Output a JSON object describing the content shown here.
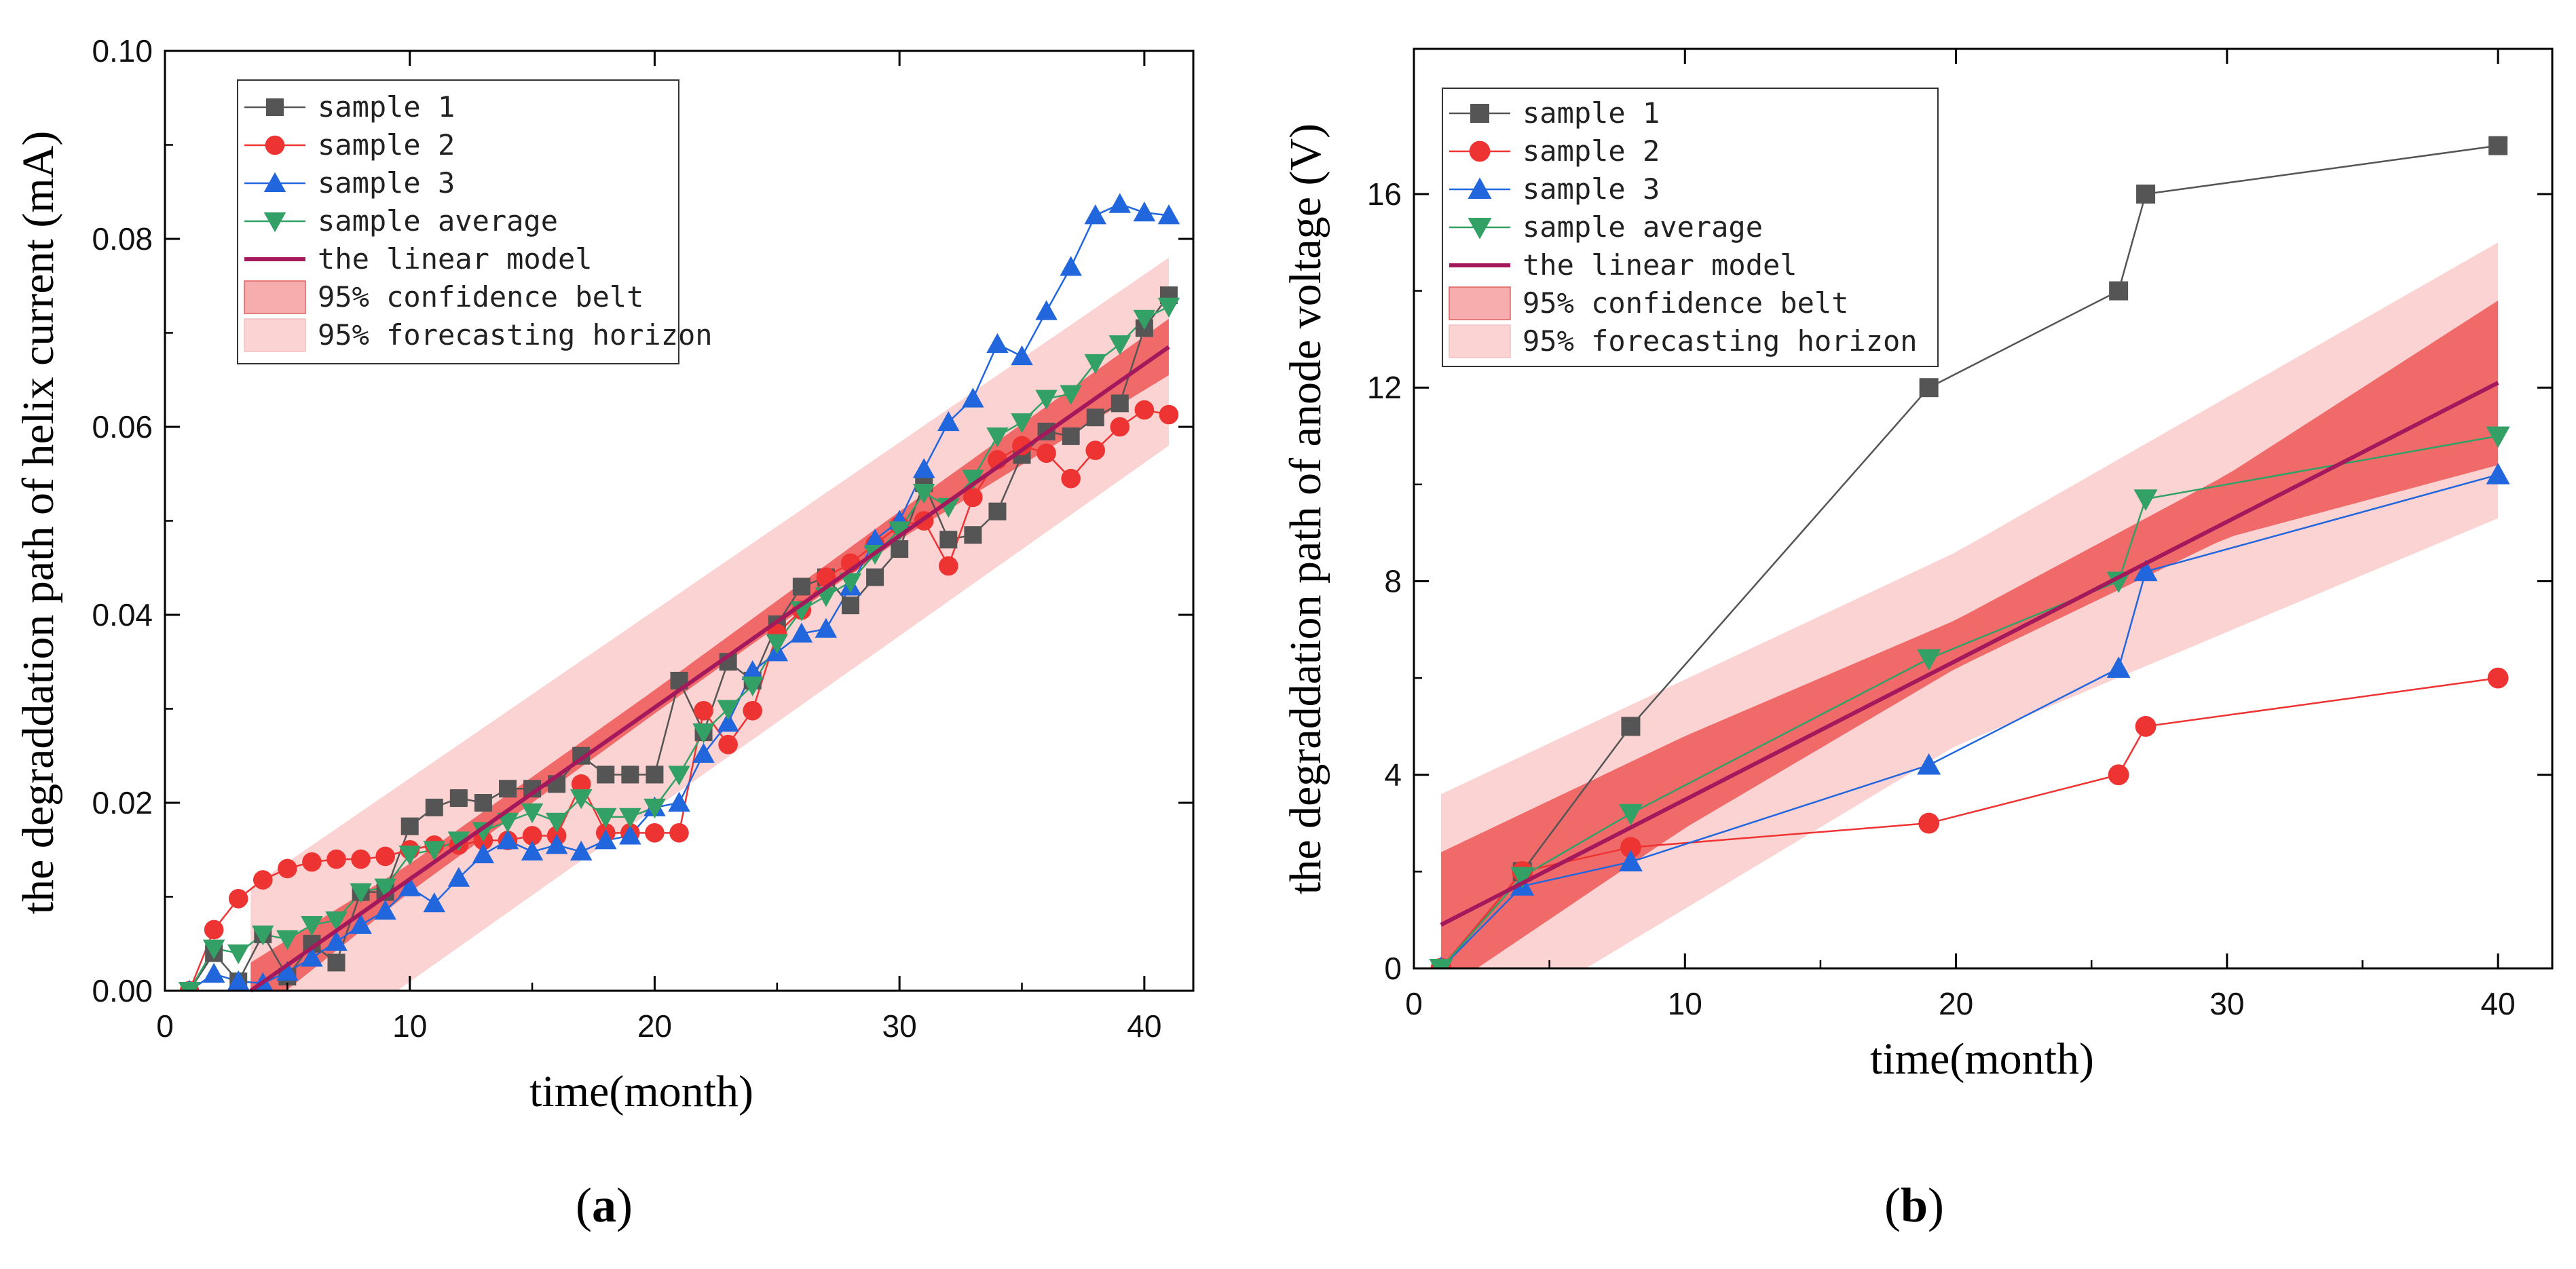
{
  "chart_data": [
    {
      "type": "line",
      "panel_label": "(a)",
      "xlabel": "time(month)",
      "ylabel": "the degraddation path of helix current (mA)",
      "xlim": [
        0,
        42
      ],
      "ylim": [
        0,
        0.1
      ],
      "xticks": [
        0,
        10,
        20,
        30,
        40
      ],
      "yticks": [
        0.0,
        0.02,
        0.04,
        0.06,
        0.08,
        0.1
      ],
      "ytick_labels": [
        "0.00",
        "0.02",
        "0.04",
        "0.06",
        "0.08",
        "0.10"
      ],
      "xtick_labels": [
        "0",
        "10",
        "20",
        "30",
        "40"
      ],
      "legend_position": "top-left",
      "legend": [
        "sample 1",
        "sample 2",
        "sample 3",
        "sample average",
        "the linear model",
        "95% confidence belt",
        "95% forecasting horizon"
      ],
      "series": [
        {
          "name": "sample 1",
          "marker": "square",
          "color": "#555555",
          "x": [
            1,
            2,
            3,
            4,
            5,
            6,
            7,
            8,
            9,
            10,
            11,
            12,
            13,
            14,
            15,
            16,
            17,
            18,
            19,
            20,
            21,
            22,
            23,
            24,
            25,
            26,
            27,
            28,
            29,
            30,
            31,
            32,
            33,
            34,
            35,
            36,
            37,
            38,
            39,
            40,
            41
          ],
          "values": [
            0.0,
            0.004,
            0.001,
            0.006,
            0.0015,
            0.005,
            0.003,
            0.0105,
            0.0105,
            0.0175,
            0.0195,
            0.0205,
            0.02,
            0.0215,
            0.0215,
            0.022,
            0.025,
            0.023,
            0.023,
            0.023,
            0.033,
            0.0275,
            0.035,
            0.033,
            0.039,
            0.043,
            0.044,
            0.041,
            0.044,
            0.047,
            0.054,
            0.048,
            0.0485,
            0.051,
            0.057,
            0.0595,
            0.059,
            0.061,
            0.0625,
            0.0705,
            0.074
          ]
        },
        {
          "name": "sample 2",
          "marker": "circle",
          "color": "#ee3333",
          "x": [
            1,
            2,
            3,
            4,
            5,
            6,
            7,
            8,
            9,
            10,
            11,
            12,
            13,
            14,
            15,
            16,
            17,
            18,
            19,
            20,
            21,
            22,
            23,
            24,
            25,
            26,
            27,
            28,
            29,
            30,
            31,
            32,
            33,
            34,
            35,
            36,
            37,
            38,
            39,
            40,
            41
          ],
          "values": [
            0.0,
            0.0065,
            0.0098,
            0.0118,
            0.013,
            0.0137,
            0.014,
            0.014,
            0.0143,
            0.015,
            0.0155,
            0.0155,
            0.016,
            0.016,
            0.0165,
            0.0165,
            0.022,
            0.0168,
            0.0168,
            0.0168,
            0.0168,
            0.0298,
            0.0262,
            0.0298,
            0.038,
            0.0405,
            0.044,
            0.0455,
            0.0475,
            0.0495,
            0.05,
            0.0452,
            0.0525,
            0.0565,
            0.058,
            0.0572,
            0.0545,
            0.0575,
            0.06,
            0.0618,
            0.0613
          ]
        },
        {
          "name": "sample 3",
          "marker": "triangle-up",
          "color": "#2266dd",
          "x": [
            1,
            2,
            3,
            4,
            5,
            6,
            7,
            8,
            9,
            10,
            11,
            12,
            13,
            14,
            15,
            16,
            17,
            18,
            19,
            20,
            21,
            22,
            23,
            24,
            25,
            26,
            27,
            28,
            29,
            30,
            31,
            32,
            33,
            34,
            35,
            36,
            37,
            38,
            39,
            40,
            41
          ],
          "values": [
            0.0,
            0.0018,
            0.001,
            0.0008,
            0.002,
            0.0035,
            0.0052,
            0.007,
            0.0085,
            0.011,
            0.0093,
            0.012,
            0.0145,
            0.016,
            0.0148,
            0.0155,
            0.0148,
            0.016,
            0.0165,
            0.0195,
            0.02,
            0.0252,
            0.0285,
            0.034,
            0.036,
            0.038,
            0.0385,
            0.043,
            0.048,
            0.05,
            0.0555,
            0.0605,
            0.063,
            0.0688,
            0.0675,
            0.0723,
            0.077,
            0.0825,
            0.0837,
            0.0828,
            0.0825
          ]
        },
        {
          "name": "sample average",
          "marker": "triangle-down",
          "color": "#33a066",
          "x": [
            1,
            2,
            3,
            4,
            5,
            6,
            7,
            8,
            9,
            10,
            11,
            12,
            13,
            14,
            15,
            16,
            17,
            18,
            19,
            20,
            21,
            22,
            23,
            24,
            25,
            26,
            27,
            28,
            29,
            30,
            31,
            32,
            33,
            34,
            35,
            36,
            37,
            38,
            39,
            40,
            41
          ],
          "values": [
            0.0,
            0.0045,
            0.004,
            0.006,
            0.0055,
            0.007,
            0.0075,
            0.0105,
            0.011,
            0.0145,
            0.015,
            0.016,
            0.017,
            0.018,
            0.019,
            0.018,
            0.0205,
            0.0185,
            0.0185,
            0.0195,
            0.023,
            0.0275,
            0.03,
            0.0325,
            0.037,
            0.0405,
            0.042,
            0.0435,
            0.0465,
            0.049,
            0.053,
            0.0515,
            0.0545,
            0.059,
            0.0605,
            0.063,
            0.0635,
            0.0668,
            0.0688,
            0.0715,
            0.0728
          ]
        }
      ],
      "linear_model": {
        "name": "the linear model",
        "color": "#a3195b",
        "x": [
          3.5,
          41
        ],
        "values": [
          0.0,
          0.0685
        ]
      },
      "confidence_belt": {
        "name": "95% confidence belt",
        "color": "#f06a6a",
        "x": [
          3.5,
          10,
          20,
          30,
          41
        ],
        "lower": [
          -0.003,
          0.0105,
          0.0295,
          0.048,
          0.0655
        ],
        "upper": [
          0.003,
          0.0135,
          0.032,
          0.051,
          0.0715
        ]
      },
      "forecasting_horizon": {
        "name": "95% forecasting horizon",
        "color": "#fbd3d3",
        "x": [
          3.5,
          41
        ],
        "lower": [
          -0.011,
          0.058
        ],
        "upper": [
          0.011,
          0.078
        ]
      }
    },
    {
      "type": "line",
      "panel_label": "(b)",
      "xlabel": "time(month)",
      "ylabel": "the degraddation path of anode voltage (V)",
      "xlim": [
        0,
        42
      ],
      "ylim": [
        0,
        19
      ],
      "xticks": [
        0,
        10,
        20,
        30,
        40
      ],
      "yticks": [
        0,
        4,
        8,
        12,
        16
      ],
      "ytick_labels": [
        "0",
        "4",
        "8",
        "12",
        "16"
      ],
      "xtick_labels": [
        "0",
        "10",
        "20",
        "30",
        "40"
      ],
      "legend_position": "top-left",
      "legend": [
        "sample 1",
        "sample 2",
        "sample 3",
        "sample average",
        "the linear model",
        "95% confidence belt",
        "95% forecasting horizon"
      ],
      "series": [
        {
          "name": "sample 1",
          "marker": "square",
          "color": "#555555",
          "x": [
            1,
            4,
            8,
            19,
            26,
            27,
            40
          ],
          "values": [
            0.0,
            2.0,
            5.0,
            12.0,
            14.0,
            16.0,
            17.0
          ]
        },
        {
          "name": "sample 2",
          "marker": "circle",
          "color": "#ee3333",
          "x": [
            1,
            4,
            8,
            19,
            26,
            27,
            40
          ],
          "values": [
            0.0,
            2.0,
            2.5,
            3.0,
            4.0,
            5.0,
            6.0
          ]
        },
        {
          "name": "sample 3",
          "marker": "triangle-up",
          "color": "#2266dd",
          "x": [
            1,
            4,
            8,
            19,
            26,
            27,
            40
          ],
          "values": [
            0.0,
            1.7,
            2.2,
            4.2,
            6.2,
            8.2,
            10.2
          ]
        },
        {
          "name": "sample average",
          "marker": "triangle-down",
          "color": "#33a066",
          "x": [
            1,
            4,
            8,
            19,
            26,
            27,
            40
          ],
          "values": [
            0.0,
            1.9,
            3.2,
            6.4,
            8.0,
            9.7,
            11.0
          ]
        }
      ],
      "linear_model": {
        "name": "the linear model",
        "color": "#a3195b",
        "x": [
          1,
          40
        ],
        "values": [
          0.9,
          12.1
        ]
      },
      "confidence_belt": {
        "name": "95% confidence belt",
        "color": "#f06a6a",
        "x": [
          1,
          10,
          20,
          30,
          40
        ],
        "lower": [
          -0.5,
          2.9,
          6.2,
          8.9,
          10.4
        ],
        "upper": [
          2.4,
          4.8,
          7.2,
          10.2,
          13.8
        ]
      },
      "forecasting_horizon": {
        "name": "95% forecasting horizon",
        "color": "#fbd3d3",
        "x": [
          1,
          20,
          40
        ],
        "lower": [
          -1.8,
          4.6,
          9.3
        ],
        "upper": [
          3.6,
          8.6,
          15.0
        ]
      }
    }
  ]
}
